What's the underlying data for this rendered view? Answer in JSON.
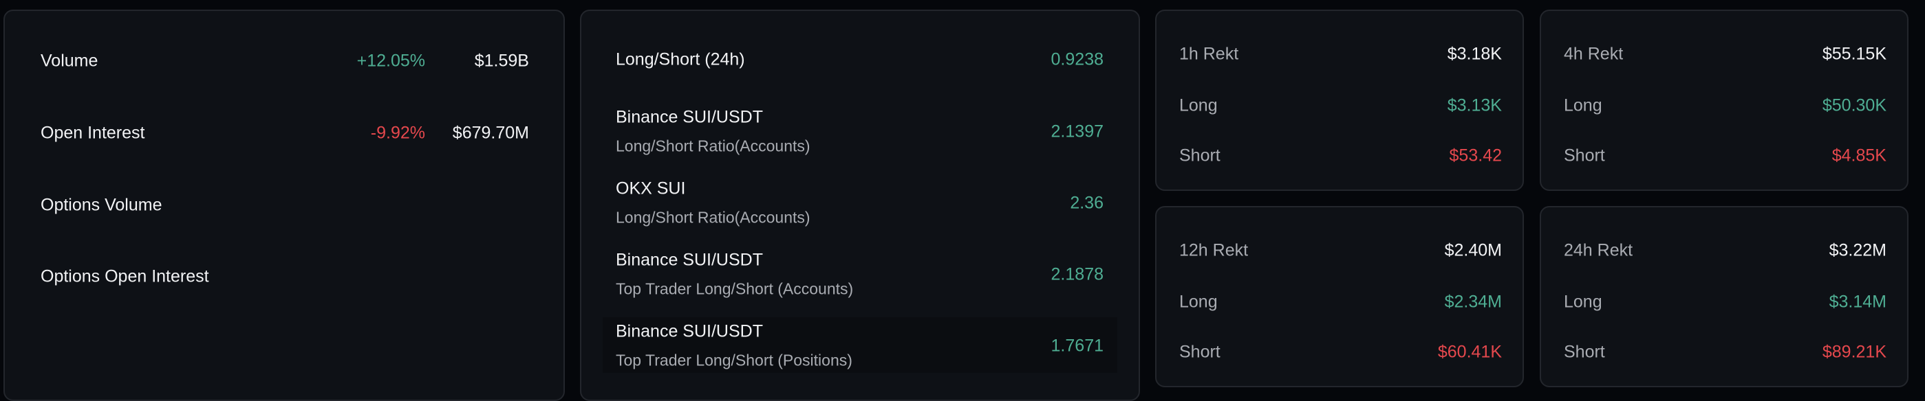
{
  "market": {
    "rows": [
      {
        "label": "Volume",
        "change": "+12.05%",
        "value": "$1.59B"
      },
      {
        "label": "Open Interest",
        "change": "-9.92%",
        "value": "$679.70M"
      },
      {
        "label": "Options Volume"
      },
      {
        "label": "Options Open Interest"
      }
    ]
  },
  "long_short": {
    "header": {
      "label": "Long/Short (24h)",
      "value": "0.9238"
    },
    "rows": [
      {
        "exchange": "Binance SUI/USDT",
        "metric": "Long/Short Ratio(Accounts)",
        "value": "2.1397"
      },
      {
        "exchange": "OKX SUI",
        "metric": "Long/Short Ratio(Accounts)",
        "value": "2.36"
      },
      {
        "exchange": "Binance SUI/USDT",
        "metric": "Top Trader Long/Short (Accounts)",
        "value": "2.1878"
      },
      {
        "exchange": "Binance SUI/USDT",
        "metric": "Top Trader Long/Short (Positions)",
        "value": "1.7671"
      }
    ]
  },
  "rekt": [
    {
      "title": "1h Rekt",
      "total": "$3.18K",
      "long_label": "Long",
      "long": "$3.13K",
      "short_label": "Short",
      "short": "$53.42"
    },
    {
      "title": "4h Rekt",
      "total": "$55.15K",
      "long_label": "Long",
      "long": "$50.30K",
      "short_label": "Short",
      "short": "$4.85K"
    },
    {
      "title": "12h Rekt",
      "total": "$2.40M",
      "long_label": "Long",
      "long": "$2.34M",
      "short_label": "Short",
      "short": "$60.41K"
    },
    {
      "title": "24h Rekt",
      "total": "$3.22M",
      "long_label": "Long",
      "long": "$3.14M",
      "short_label": "Short",
      "short": "$89.21K"
    }
  ],
  "colors": {
    "positive": "#4fae93",
    "negative": "#e5484d",
    "card": "#0e1116",
    "background": "#05070b"
  }
}
